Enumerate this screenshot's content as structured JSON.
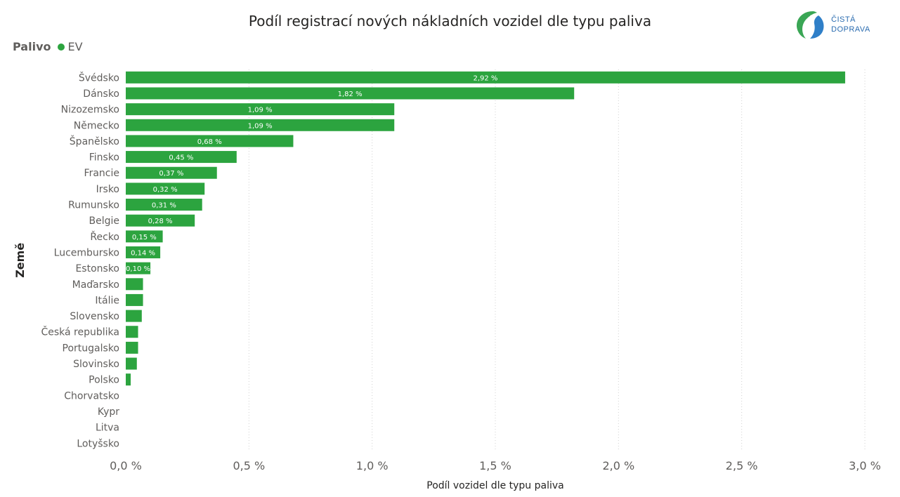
{
  "title": "Podíl registrací nových nákladních vozidel dle typu paliva",
  "legend": {
    "title": "Palivo",
    "item": "EV"
  },
  "logo": {
    "line1": "ČISTÁ",
    "line2": "DOPRAVA"
  },
  "colors": {
    "bar": "#2ca43f",
    "grid": "#d0d0d0",
    "text": "#605e5c",
    "logo_green": "#3aa655",
    "logo_blue": "#2f7fc8"
  },
  "chart_data": {
    "type": "bar",
    "orientation": "horizontal",
    "xlabel": "Podíl vozidel dle typu paliva",
    "ylabel": "Země",
    "xlim": [
      0,
      3.0
    ],
    "xticks": [
      {
        "value": 0.0,
        "label": "0,0 %"
      },
      {
        "value": 0.5,
        "label": "0,5 %"
      },
      {
        "value": 1.0,
        "label": "1,0 %"
      },
      {
        "value": 1.5,
        "label": "1,5 %"
      },
      {
        "value": 2.0,
        "label": "2,0 %"
      },
      {
        "value": 2.5,
        "label": "2,5 %"
      },
      {
        "value": 3.0,
        "label": "3,0 %"
      }
    ],
    "grid": true,
    "legend_position": "top-left",
    "series": [
      {
        "name": "EV"
      }
    ],
    "categories": [
      "Švédsko",
      "Dánsko",
      "Nizozemsko",
      "Německo",
      "Španělsko",
      "Finsko",
      "Francie",
      "Irsko",
      "Rumunsko",
      "Belgie",
      "Řecko",
      "Lucembursko",
      "Estonsko",
      "Maďarsko",
      "Itálie",
      "Slovensko",
      "Česká republika",
      "Portugalsko",
      "Slovinsko",
      "Polsko",
      "Chorvatsko",
      "Kypr",
      "Litva",
      "Lotyšsko"
    ],
    "values": [
      2.92,
      1.82,
      1.09,
      1.09,
      0.68,
      0.45,
      0.37,
      0.32,
      0.31,
      0.28,
      0.15,
      0.14,
      0.1,
      0.07,
      0.07,
      0.065,
      0.05,
      0.05,
      0.045,
      0.02,
      0,
      0,
      0,
      0
    ],
    "data_labels": [
      "2,92 %",
      "1,82 %",
      "1,09 %",
      "1,09 %",
      "0,68 %",
      "0,45 %",
      "0,37 %",
      "0,32 %",
      "0,31 %",
      "0,28 %",
      "0,15 %",
      "0,14 %",
      "0,10 %",
      "",
      "",
      "",
      "",
      "",
      "",
      "",
      "",
      "",
      "",
      ""
    ]
  }
}
